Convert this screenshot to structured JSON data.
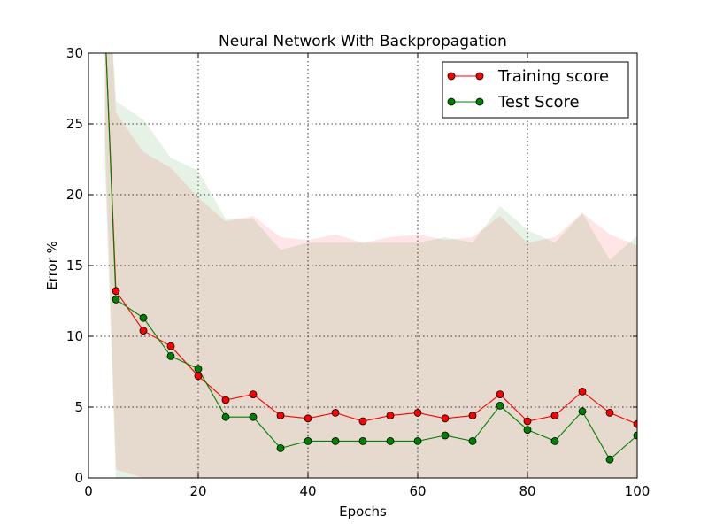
{
  "chart_data": {
    "type": "line",
    "title": "Neural Network With Backpropagation",
    "xlabel": "Epochs",
    "ylabel": "Error %",
    "xlim": [
      0,
      100
    ],
    "ylim": [
      0,
      30
    ],
    "xticks": [
      0,
      20,
      40,
      60,
      80,
      100
    ],
    "yticks": [
      0,
      5,
      10,
      15,
      20,
      25,
      30
    ],
    "grid": true,
    "legend_position": "top-right",
    "x": [
      3,
      5,
      10,
      15,
      20,
      25,
      30,
      35,
      40,
      45,
      50,
      55,
      60,
      65,
      70,
      75,
      80,
      85,
      90,
      95,
      100
    ],
    "series": [
      {
        "name": "Training score",
        "color": "#ff0000",
        "values": [
          32.0,
          13.2,
          10.4,
          9.3,
          7.2,
          5.5,
          5.9,
          4.4,
          4.2,
          4.6,
          4.0,
          4.4,
          4.6,
          4.2,
          4.4,
          5.9,
          4.0,
          4.4,
          6.1,
          4.6,
          3.8
        ],
        "band_upper": [
          40.0,
          25.8,
          23.0,
          21.9,
          19.8,
          18.1,
          18.5,
          17.0,
          16.8,
          17.2,
          16.6,
          17.0,
          17.2,
          16.8,
          17.0,
          18.5,
          16.6,
          17.0,
          18.7,
          17.2,
          16.4
        ],
        "band_lower": [
          24.0,
          0.6,
          0.0,
          0.0,
          0.0,
          0.0,
          0.0,
          0.0,
          0.0,
          0.0,
          0.0,
          0.0,
          0.0,
          0.0,
          0.0,
          0.0,
          0.0,
          0.0,
          0.0,
          0.0,
          0.0
        ]
      },
      {
        "name": "Test Score",
        "color": "#008000",
        "values": [
          32.0,
          12.6,
          11.3,
          8.6,
          7.7,
          4.3,
          4.3,
          2.1,
          2.6,
          2.6,
          2.6,
          2.6,
          2.6,
          3.0,
          2.6,
          5.1,
          3.4,
          2.6,
          4.7,
          1.3,
          3.0
        ],
        "band_upper": [
          40.0,
          26.6,
          25.3,
          22.6,
          21.7,
          18.3,
          18.3,
          16.1,
          16.6,
          16.6,
          16.6,
          16.6,
          16.6,
          17.0,
          16.6,
          19.2,
          17.5,
          16.6,
          18.7,
          15.4,
          17.1
        ],
        "band_lower": [
          22.0,
          0.0,
          0.0,
          0.0,
          0.0,
          0.0,
          0.0,
          0.0,
          0.0,
          0.0,
          0.0,
          0.0,
          0.0,
          0.0,
          0.0,
          0.0,
          0.0,
          0.0,
          0.0,
          0.0,
          0.0
        ]
      }
    ]
  }
}
